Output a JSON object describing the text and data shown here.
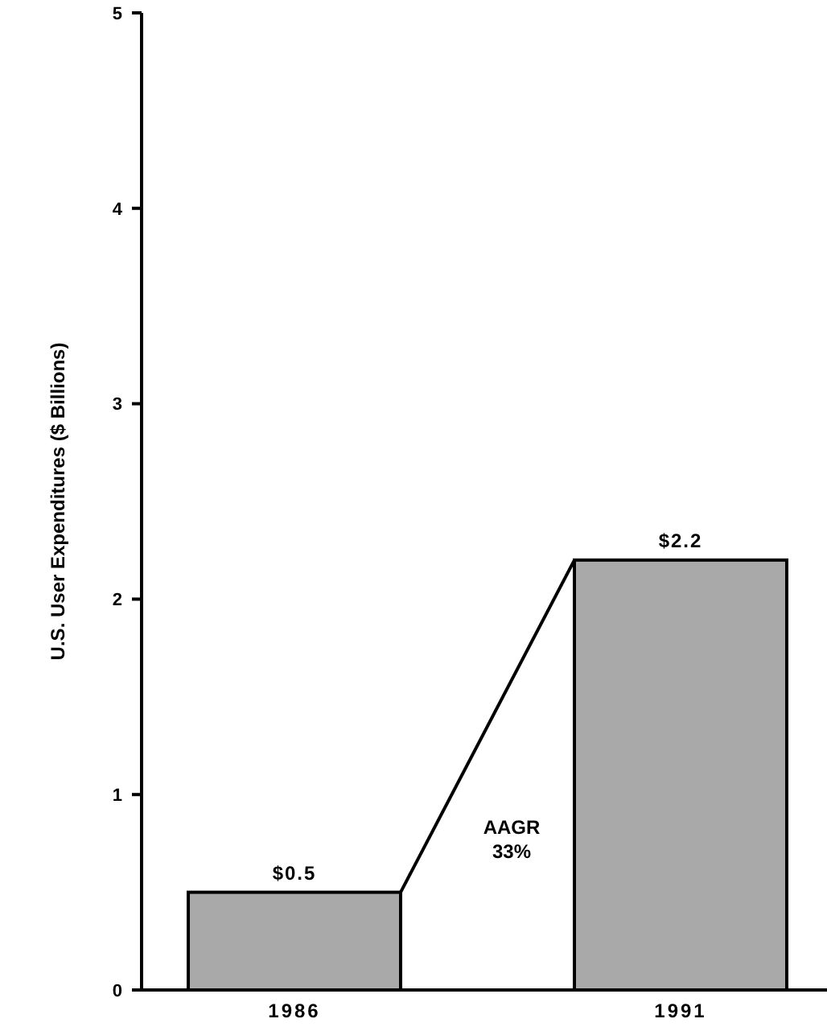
{
  "chart_data": {
    "type": "bar",
    "ylabel": "U.S. User Expenditures ($ Billions)",
    "categories": [
      "1986",
      "1991"
    ],
    "values": [
      0.5,
      2.2
    ],
    "value_labels": [
      "$0.5",
      "$2.2"
    ],
    "color": "#a9a9a9",
    "ylim": [
      0,
      5
    ],
    "yticks": [
      0,
      1,
      2,
      3,
      4,
      5
    ],
    "grid": false,
    "annotations": [
      "AAGR 33%"
    ]
  }
}
